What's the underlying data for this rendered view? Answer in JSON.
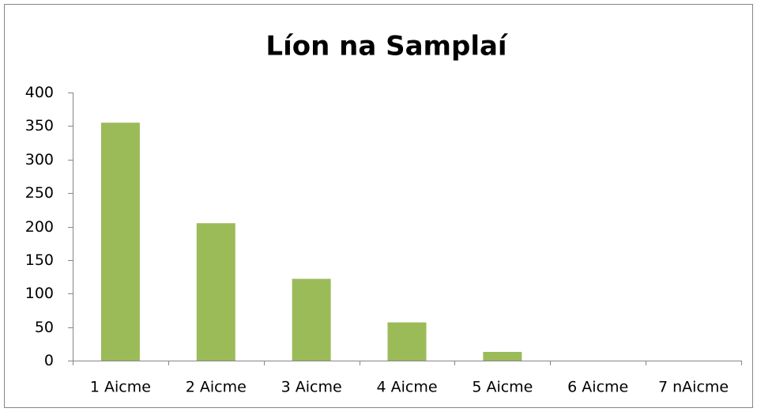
{
  "chart_data": {
    "type": "bar",
    "title": "Líon na Samplaí",
    "categories": [
      "1 Aicme",
      "2 Aicme",
      "3 Aicme",
      "4 Aicme",
      "5 Aicme",
      "6 Aicme",
      "7 nAicme"
    ],
    "values": [
      355,
      205,
      122,
      57,
      13,
      0,
      0
    ],
    "color": "#9bbb59",
    "ylim": [
      0,
      400
    ],
    "yticks": [
      0,
      50,
      100,
      150,
      200,
      250,
      300,
      350,
      400
    ],
    "grid": false
  }
}
